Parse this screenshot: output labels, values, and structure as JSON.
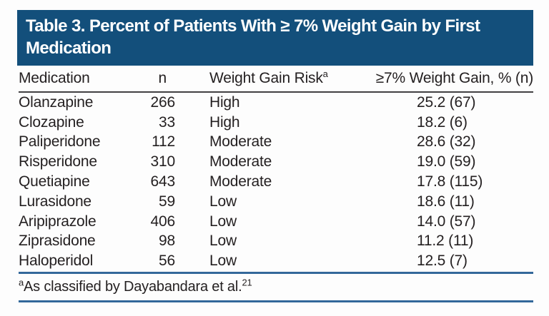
{
  "colors": {
    "title_bar_background": "#134F7B",
    "title_text": "#FFFFFF",
    "body_text": "#231F20",
    "header_rule": "#414042",
    "blue_rule": "#33689A"
  },
  "table": {
    "title": "Table 3. Percent of Patients With ≥ 7% Weight Gain by First Medication",
    "columns": [
      {
        "label": "Medication"
      },
      {
        "label": "n"
      },
      {
        "label": "Weight Gain Risk",
        "superscript": "a"
      },
      {
        "label": "≥7% Weight Gain, % (n)"
      }
    ],
    "rows": [
      {
        "medication": "Olanzapine",
        "n": "266",
        "risk": "High",
        "gain": "25.2 (67)"
      },
      {
        "medication": "Clozapine",
        "n": "33",
        "risk": "High",
        "gain": "18.2 (6)"
      },
      {
        "medication": "Paliperidone",
        "n": "112",
        "risk": "Moderate",
        "gain": "28.6 (32)"
      },
      {
        "medication": "Risperidone",
        "n": "310",
        "risk": "Moderate",
        "gain": "19.0 (59)"
      },
      {
        "medication": "Quetiapine",
        "n": "643",
        "risk": "Moderate",
        "gain": "17.8 (115)"
      },
      {
        "medication": "Lurasidone",
        "n": "59",
        "risk": "Low",
        "gain": "18.6 (11)"
      },
      {
        "medication": "Aripiprazole",
        "n": "406",
        "risk": "Low",
        "gain": "14.0 (57)"
      },
      {
        "medication": "Ziprasidone",
        "n": "98",
        "risk": "Low",
        "gain": "11.2 (11)"
      },
      {
        "medication": "Haloperidol",
        "n": "56",
        "risk": "Low",
        "gain": "12.5 (7)"
      }
    ],
    "footnote": {
      "marker": "a",
      "text": "As classified by Dayabandara et al.",
      "reference": "21"
    }
  }
}
